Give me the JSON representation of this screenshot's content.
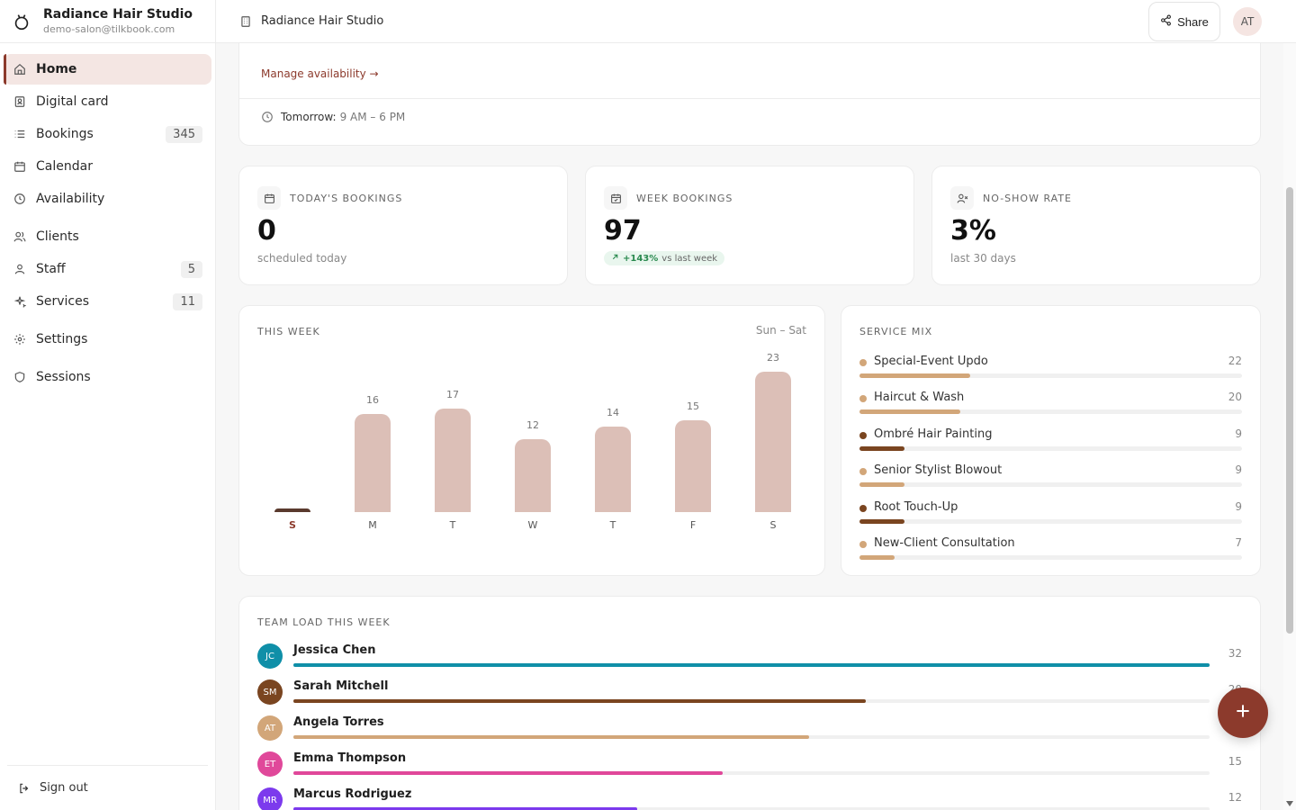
{
  "brand": {
    "name": "Radiance Hair Studio",
    "email": "demo-salon@tilkbook.com"
  },
  "sidebar": {
    "items": [
      {
        "label": "Home",
        "icon": "home-icon"
      },
      {
        "label": "Digital card",
        "icon": "id-card-icon"
      },
      {
        "label": "Bookings",
        "icon": "list-icon",
        "badge": "345"
      },
      {
        "label": "Calendar",
        "icon": "calendar-icon"
      },
      {
        "label": "Availability",
        "icon": "clock-icon"
      },
      {
        "label": "Clients",
        "icon": "users-icon"
      },
      {
        "label": "Staff",
        "icon": "user-icon",
        "badge": "5"
      },
      {
        "label": "Services",
        "icon": "sparkle-icon",
        "badge": "11"
      },
      {
        "label": "Settings",
        "icon": "gear-icon"
      },
      {
        "label": "Sessions",
        "icon": "shield-icon"
      }
    ],
    "signout": "Sign out"
  },
  "topbar": {
    "title": "Radiance Hair Studio",
    "share_label": "Share",
    "avatar": "AT"
  },
  "availability": {
    "link": "Manage availability →",
    "tomorrow_label": "Tomorrow:",
    "tomorrow_value": "9 AM – 6 PM"
  },
  "stats": {
    "today": {
      "label": "TODAY'S BOOKINGS",
      "value": "0",
      "sub": "scheduled today"
    },
    "week": {
      "label": "WEEK BOOKINGS",
      "value": "97",
      "trend_pct": "+143%",
      "trend_text": "vs last week"
    },
    "noshow": {
      "label": "NO-SHOW RATE",
      "value": "3%",
      "sub": "last 30 days"
    }
  },
  "chart_data": {
    "type": "bar",
    "title": "THIS WEEK",
    "range_label": "Sun – Sat",
    "categories": [
      "S",
      "M",
      "T",
      "W",
      "T",
      "F",
      "S"
    ],
    "values": [
      0,
      16,
      17,
      12,
      14,
      15,
      23
    ],
    "ylim": [
      0,
      23
    ],
    "highlight_index": 0,
    "colors": {
      "bar": "#dcbfb7",
      "today": "#5a3a2e"
    }
  },
  "service_mix": {
    "title": "SERVICE MIX",
    "max": 22,
    "items": [
      {
        "name": "Special-Event Updo",
        "count": 22,
        "color": "#d2a679"
      },
      {
        "name": "Haircut & Wash",
        "count": 20,
        "color": "#d2a679"
      },
      {
        "name": "Ombré Hair Painting",
        "count": 9,
        "color": "#7a4520"
      },
      {
        "name": "Senior Stylist Blowout",
        "count": 9,
        "color": "#d2a679"
      },
      {
        "name": "Root Touch-Up",
        "count": 9,
        "color": "#7a4520"
      },
      {
        "name": "New-Client Consultation",
        "count": 7,
        "color": "#d2a679"
      }
    ]
  },
  "team_load": {
    "title": "TEAM LOAD THIS WEEK",
    "max": 32,
    "members": [
      {
        "initials": "JC",
        "name": "Jessica Chen",
        "count": 32,
        "color": "#0f8fa8"
      },
      {
        "initials": "SM",
        "name": "Sarah Mitchell",
        "count": 20,
        "color": "#7a4520"
      },
      {
        "initials": "AT",
        "name": "Angela Torres",
        "count": 18,
        "color": "#d2a679"
      },
      {
        "initials": "ET",
        "name": "Emma Thompson",
        "count": 15,
        "color": "#e0489a"
      },
      {
        "initials": "MR",
        "name": "Marcus Rodriguez",
        "count": 12,
        "color": "#7c3aed"
      }
    ]
  }
}
